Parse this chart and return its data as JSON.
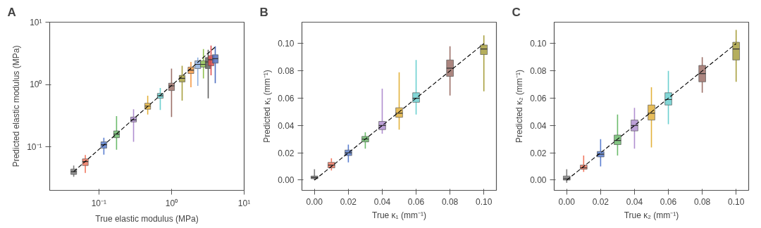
{
  "chart_data": [
    {
      "type": "box",
      "title": "A",
      "xlabel": "True elastic modulus (MPa)",
      "ylabel": "Predicted elastic modulus (MPa)",
      "log": "xy",
      "x": [
        0.045,
        0.065,
        0.117,
        0.175,
        0.3,
        0.47,
        0.7,
        1.0,
        1.4,
        1.85,
        2.3,
        2.75,
        3.2,
        3.5,
        4.0
      ],
      "colors": [
        "#7f7f7f",
        "#f07860",
        "#5b7fd0",
        "#6dbb6d",
        "#b08fd0",
        "#e3b23c",
        "#6cd0d0",
        "#9c7068",
        "#a8a040",
        "#f59a45",
        "#8fb0e0",
        "#90c050",
        "#606060",
        "#e05050",
        "#5070c0"
      ],
      "boxes": [
        {
          "low": 0.033,
          "q1": 0.036,
          "median": 0.04,
          "q3": 0.044,
          "high": 0.05
        },
        {
          "low": 0.038,
          "q1": 0.05,
          "median": 0.058,
          "q3": 0.064,
          "high": 0.074
        },
        {
          "low": 0.075,
          "q1": 0.095,
          "median": 0.108,
          "q3": 0.12,
          "high": 0.14
        },
        {
          "low": 0.09,
          "q1": 0.14,
          "median": 0.16,
          "q3": 0.18,
          "high": 0.31
        },
        {
          "low": 0.12,
          "q1": 0.25,
          "median": 0.27,
          "q3": 0.3,
          "high": 0.4
        },
        {
          "low": 0.33,
          "q1": 0.4,
          "median": 0.45,
          "q3": 0.5,
          "high": 0.66
        },
        {
          "low": 0.39,
          "q1": 0.6,
          "median": 0.66,
          "q3": 0.72,
          "high": 0.88
        },
        {
          "low": 0.3,
          "q1": 0.8,
          "median": 0.95,
          "q3": 1.05,
          "high": 1.8
        },
        {
          "low": 0.55,
          "q1": 1.1,
          "median": 1.25,
          "q3": 1.4,
          "high": 2.0
        },
        {
          "low": 0.9,
          "q1": 1.5,
          "median": 1.7,
          "q3": 1.9,
          "high": 2.3
        },
        {
          "low": 0.95,
          "q1": 1.8,
          "median": 2.1,
          "q3": 2.4,
          "high": 2.7
        },
        {
          "low": 1.25,
          "q1": 1.9,
          "median": 2.1,
          "q3": 2.4,
          "high": 3.7
        },
        {
          "low": 0.6,
          "q1": 1.8,
          "median": 2.3,
          "q3": 2.7,
          "high": 3.6
        },
        {
          "low": 1.4,
          "q1": 2.0,
          "median": 2.5,
          "q3": 2.9,
          "high": 4.2
        },
        {
          "low": 1.05,
          "q1": 2.2,
          "median": 2.6,
          "q3": 3.0,
          "high": 4.1
        }
      ],
      "series": [
        {
          "type": "line",
          "x": [
            0.045,
            4.0
          ],
          "values": [
            0.04,
            4.0
          ],
          "color": "#000000",
          "line_style": "dashed"
        }
      ],
      "xlim": [
        0.021,
        10
      ],
      "ylim": [
        0.02,
        10
      ],
      "xticks": [
        {
          "value": 0.1,
          "label": "10⁻¹"
        },
        {
          "value": 1,
          "label": "10⁰"
        },
        {
          "value": 10,
          "label": "10¹"
        }
      ],
      "yticks": [
        {
          "value": 0.1,
          "label": "10⁻¹"
        },
        {
          "value": 1,
          "label": "10⁰"
        },
        {
          "value": 10,
          "label": "10¹"
        }
      ]
    },
    {
      "type": "box",
      "title": "B",
      "xlabel": "True κ₁ (mm⁻¹)",
      "ylabel": "Predicted κ₁ (mm⁻¹)",
      "x": [
        0.0,
        0.01,
        0.02,
        0.03,
        0.04,
        0.05,
        0.06,
        0.08,
        0.1
      ],
      "colors": [
        "#7f7f7f",
        "#f07860",
        "#5b7fd0",
        "#6dbb6d",
        "#b08fd0",
        "#e3b23c",
        "#6cd0d0",
        "#9c7068",
        "#a8a040"
      ],
      "boxes": [
        {
          "low": 0.0,
          "q1": 0.001,
          "median": 0.002,
          "q3": 0.003,
          "high": 0.008
        },
        {
          "low": 0.007,
          "q1": 0.009,
          "median": 0.011,
          "q3": 0.013,
          "high": 0.016
        },
        {
          "low": 0.013,
          "q1": 0.018,
          "median": 0.02,
          "q3": 0.022,
          "high": 0.026
        },
        {
          "low": 0.023,
          "q1": 0.028,
          "median": 0.03,
          "q3": 0.032,
          "high": 0.035
        },
        {
          "low": 0.034,
          "q1": 0.037,
          "median": 0.04,
          "q3": 0.043,
          "high": 0.067
        },
        {
          "low": 0.037,
          "q1": 0.046,
          "median": 0.049,
          "q3": 0.053,
          "high": 0.079
        },
        {
          "low": 0.048,
          "q1": 0.057,
          "median": 0.06,
          "q3": 0.064,
          "high": 0.088
        },
        {
          "low": 0.062,
          "q1": 0.076,
          "median": 0.082,
          "q3": 0.088,
          "high": 0.098
        },
        {
          "low": 0.065,
          "q1": 0.092,
          "median": 0.096,
          "q3": 0.099,
          "high": 0.106
        }
      ],
      "series": [
        {
          "type": "line",
          "x": [
            0.0,
            0.1
          ],
          "values": [
            0.0,
            0.1
          ],
          "color": "#000000",
          "line_style": "dashed"
        }
      ],
      "xlim": [
        -0.0074,
        0.1074
      ],
      "ylim": [
        -0.0075,
        0.1157
      ],
      "xticks": [
        {
          "value": 0,
          "label": "0.00"
        },
        {
          "value": 0.02,
          "label": "0.02"
        },
        {
          "value": 0.04,
          "label": "0.04"
        },
        {
          "value": 0.06,
          "label": "0.06"
        },
        {
          "value": 0.08,
          "label": "0.08"
        },
        {
          "value": 0.1,
          "label": "0.10"
        }
      ],
      "yticks": [
        {
          "value": 0,
          "label": "0.00"
        },
        {
          "value": 0.02,
          "label": "0.02"
        },
        {
          "value": 0.04,
          "label": "0.04"
        },
        {
          "value": 0.06,
          "label": "0.06"
        },
        {
          "value": 0.08,
          "label": "0.08"
        },
        {
          "value": 0.1,
          "label": "0.10"
        }
      ]
    },
    {
      "type": "box",
      "title": "C",
      "xlabel": "True κ₂ (mm⁻¹)",
      "ylabel": "Predicted κ₂ (mm⁻¹)",
      "x": [
        0.0,
        0.01,
        0.02,
        0.03,
        0.04,
        0.05,
        0.06,
        0.08,
        0.1
      ],
      "colors": [
        "#7f7f7f",
        "#f07860",
        "#5b7fd0",
        "#6dbb6d",
        "#b08fd0",
        "#e3b23c",
        "#6cd0d0",
        "#9c7068",
        "#a8a040"
      ],
      "boxes": [
        {
          "low": -0.002,
          "q1": 0.0,
          "median": 0.001,
          "q3": 0.003,
          "high": 0.008
        },
        {
          "low": 0.006,
          "q1": 0.008,
          "median": 0.009,
          "q3": 0.011,
          "high": 0.018
        },
        {
          "low": 0.01,
          "q1": 0.017,
          "median": 0.019,
          "q3": 0.021,
          "high": 0.03
        },
        {
          "low": 0.018,
          "q1": 0.026,
          "median": 0.029,
          "q3": 0.033,
          "high": 0.048
        },
        {
          "low": 0.023,
          "q1": 0.036,
          "median": 0.04,
          "q3": 0.044,
          "high": 0.053
        },
        {
          "low": 0.024,
          "q1": 0.044,
          "median": 0.049,
          "q3": 0.055,
          "high": 0.068
        },
        {
          "low": 0.041,
          "q1": 0.055,
          "median": 0.059,
          "q3": 0.064,
          "high": 0.08
        },
        {
          "low": 0.064,
          "q1": 0.072,
          "median": 0.078,
          "q3": 0.084,
          "high": 0.09
        },
        {
          "low": 0.072,
          "q1": 0.088,
          "median": 0.096,
          "q3": 0.101,
          "high": 0.11
        }
      ],
      "series": [
        {
          "type": "line",
          "x": [
            0.0,
            0.1
          ],
          "values": [
            0.0,
            0.1
          ],
          "color": "#000000",
          "line_style": "dashed"
        }
      ],
      "xlim": [
        -0.0074,
        0.1074
      ],
      "ylim": [
        -0.0075,
        0.1157
      ],
      "xticks": [
        {
          "value": 0,
          "label": "0.00"
        },
        {
          "value": 0.02,
          "label": "0.02"
        },
        {
          "value": 0.04,
          "label": "0.04"
        },
        {
          "value": 0.06,
          "label": "0.06"
        },
        {
          "value": 0.08,
          "label": "0.08"
        },
        {
          "value": 0.1,
          "label": "0.10"
        }
      ],
      "yticks": [
        {
          "value": 0,
          "label": "0.00"
        },
        {
          "value": 0.02,
          "label": "0.02"
        },
        {
          "value": 0.04,
          "label": "0.04"
        },
        {
          "value": 0.06,
          "label": "0.06"
        },
        {
          "value": 0.08,
          "label": "0.08"
        },
        {
          "value": 0.1,
          "label": "0.10"
        }
      ]
    }
  ]
}
